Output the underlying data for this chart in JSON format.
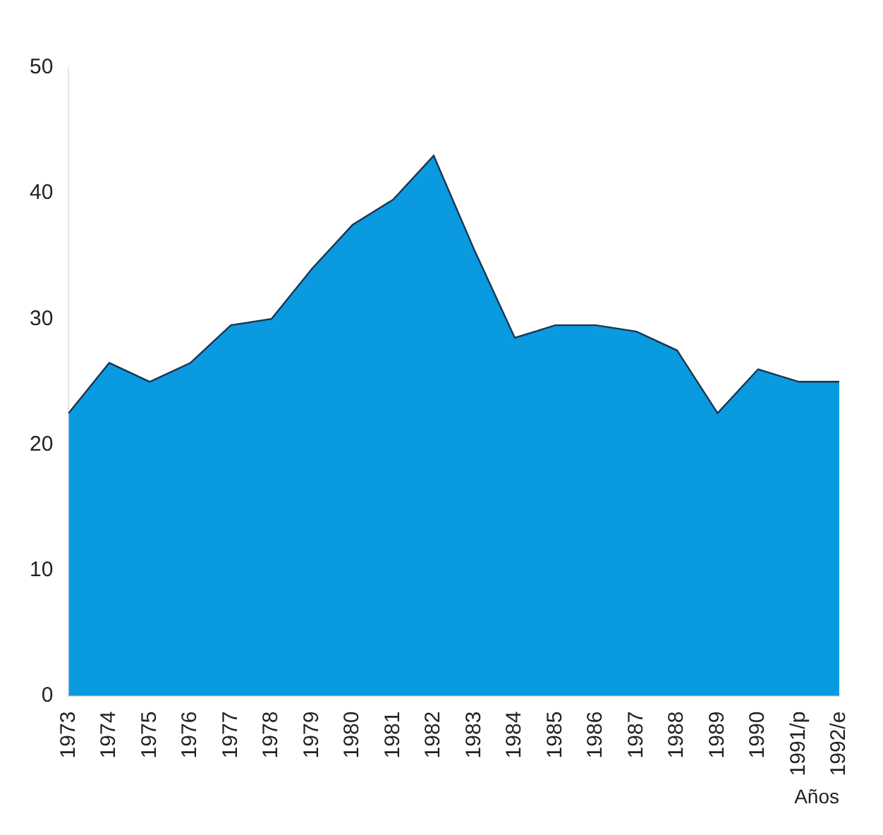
{
  "chart_data": {
    "type": "area",
    "xlabel": "Años",
    "categories": [
      "1973",
      "1974",
      "1975",
      "1976",
      "1977",
      "1978",
      "1979",
      "1980",
      "1981",
      "1982",
      "1983",
      "1984",
      "1985",
      "1986",
      "1987",
      "1988",
      "1989",
      "1990",
      "1991/p",
      "1992/e"
    ],
    "series": [
      {
        "color": "#0a9ae0",
        "values": [
          22.5,
          26.5,
          25,
          26.5,
          29.5,
          30,
          34,
          37.5,
          39.5,
          43,
          35.5,
          28.5,
          29.5,
          29.5,
          29,
          27.5,
          22.5,
          26,
          25,
          25
        ]
      }
    ],
    "ylim": [
      0,
      50
    ],
    "yticks": [
      0,
      10,
      20,
      30,
      40,
      50
    ],
    "grid": false,
    "legend": false
  }
}
